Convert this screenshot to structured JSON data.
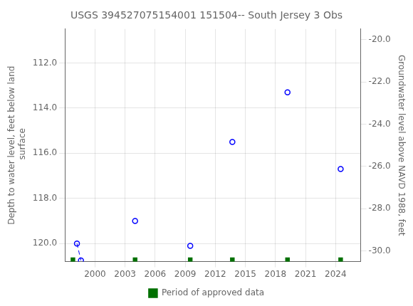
{
  "chart_data": {
    "type": "scatter",
    "title": "USGS 394527075154001 151504-- South Jersey 3 Obs",
    "ylabel": "Depth to water level, feet below land\n surface",
    "y2label": "Groundwater level above NAVD 1988, feet",
    "xlim": [
      1997.0,
      2026.5
    ],
    "xticks": [
      2000,
      2003,
      2006,
      2009,
      2012,
      2015,
      2018,
      2021,
      2024
    ],
    "ylim": [
      120.8,
      110.5
    ],
    "yticks": [
      {
        "value": 112.0,
        "label": "112.0"
      },
      {
        "value": 114.0,
        "label": "114.0"
      },
      {
        "value": 116.0,
        "label": "116.0"
      },
      {
        "value": 118.0,
        "label": "118.0"
      },
      {
        "value": 120.0,
        "label": "120.0"
      }
    ],
    "y2lim": [
      -30.5,
      -19.5
    ],
    "y2ticks": [
      {
        "value": -20.0,
        "label": "-20.0"
      },
      {
        "value": -22.0,
        "label": "-22.0"
      },
      {
        "value": -24.0,
        "label": "-24.0"
      },
      {
        "value": -26.0,
        "label": "-26.0"
      },
      {
        "value": -28.0,
        "label": "-28.0"
      },
      {
        "value": -30.0,
        "label": "-30.0"
      }
    ],
    "grid": true,
    "legend": "bottom",
    "series": [
      {
        "type": "scatter",
        "marker": "circle",
        "color": "blue",
        "x": [
          1998.2,
          1998.6,
          2004.0,
          2009.5,
          2013.7,
          2019.2,
          2024.5
        ],
        "values": [
          120.0,
          120.75,
          119.0,
          120.1,
          115.5,
          113.3,
          116.7
        ]
      },
      {
        "type": "line",
        "line_style": "dashed",
        "color": "blue",
        "x": [
          1998.2,
          1998.6
        ],
        "values": [
          120.0,
          120.75
        ]
      },
      {
        "name": "Period of approved data",
        "type": "scatter",
        "marker": "square",
        "color": "#007000",
        "x": [
          1997.8,
          2004.0,
          2009.5,
          2013.7,
          2019.2,
          2024.5
        ],
        "values": [
          120.72,
          120.72,
          120.72,
          120.72,
          120.72,
          120.72
        ]
      }
    ]
  }
}
